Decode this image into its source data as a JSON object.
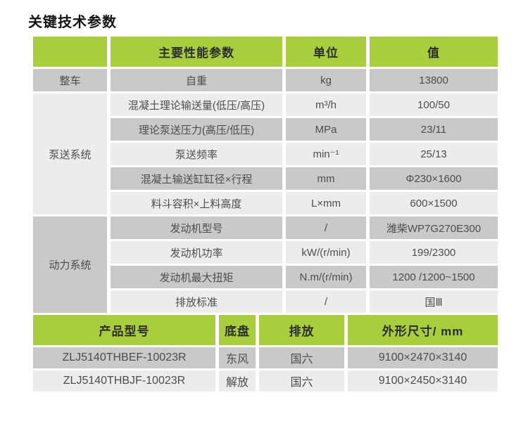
{
  "page": {
    "title": "关键技术参数"
  },
  "colors": {
    "header_green": "#a9ce3d",
    "row_dark": "#c9c9c9",
    "row_light": "#ececec",
    "text": "#4d4d4d",
    "title_text": "#141414"
  },
  "spec_table": {
    "headers": [
      "",
      "主要性能参数",
      "单位",
      "值"
    ],
    "groups": [
      {
        "category": "整车",
        "rows": [
          {
            "param": "自重",
            "unit": "kg",
            "value": "13800"
          }
        ]
      },
      {
        "category": "泵送系统",
        "rows": [
          {
            "param": "混凝土理论输送量(低压/高压)",
            "unit": "m³/h",
            "value": "100/50"
          },
          {
            "param": "理论泵送压力(高压/低压)",
            "unit": "MPa",
            "value": "23/11"
          },
          {
            "param": "泵送频率",
            "unit": "min⁻¹",
            "value": "25/13"
          },
          {
            "param": "混凝土输送缸缸径×行程",
            "unit": "mm",
            "value": "Φ230×1600"
          },
          {
            "param": "料斗容积×上料高度",
            "unit": "L×mm",
            "value": "600×1500"
          }
        ]
      },
      {
        "category": "动力系统",
        "rows": [
          {
            "param": "发动机型号",
            "unit": "/",
            "value": "潍柴WP7G270E300"
          },
          {
            "param": "发动机功率",
            "unit": "kW/(r/min)",
            "value": "199/2300"
          },
          {
            "param": "发动机最大扭矩",
            "unit": "N.m/(r/min)",
            "value": "1200 /1200~1500"
          },
          {
            "param": "排放标准",
            "unit": "/",
            "value": "国Ⅲ"
          }
        ]
      }
    ]
  },
  "model_table": {
    "headers": [
      "产品型号",
      "底盘",
      "排放",
      "外形尺寸/ mm"
    ],
    "rows": [
      {
        "model": "ZLJ5140THBEF-10023R",
        "chassis": "东风",
        "emission": "国六",
        "dimensions": "9100×2470×3140"
      },
      {
        "model": "ZLJ5140THBJF-10023R",
        "chassis": "解放",
        "emission": "国六",
        "dimensions": "9100×2450×3140"
      }
    ]
  }
}
